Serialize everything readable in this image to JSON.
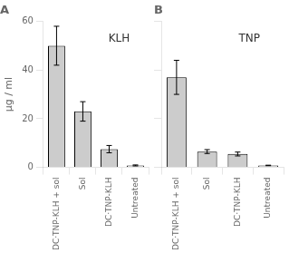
{
  "chart_data": [
    {
      "type": "bar",
      "title": "KLH",
      "annotations": [
        "A"
      ],
      "categories": [
        "DC·TNP-KLH + sol",
        "Sol",
        "DC·TNP-KLH",
        "Untreated"
      ],
      "values": [
        50,
        23,
        7.5,
        0.8
      ],
      "errors": [
        8,
        4,
        1.5,
        0.2
      ],
      "color": "#cccccc",
      "ylabel": "μg / ml",
      "ylim": [
        0,
        60
      ],
      "yticks": [
        0,
        20,
        40,
        60
      ],
      "grid": false
    },
    {
      "type": "bar",
      "title": "TNP",
      "annotations": [
        "B"
      ],
      "categories": [
        "DC·TNP-KLH + sol",
        "Sol",
        "DC·TNP-KLH",
        "Untreated"
      ],
      "values": [
        37,
        6.5,
        5.5,
        0.8
      ],
      "errors": [
        7,
        0.8,
        0.8,
        0.1
      ],
      "color": "#cccccc",
      "ylim": [
        0,
        60
      ],
      "yticks": [
        0,
        20,
        40,
        60
      ],
      "grid": false,
      "tick_labels": "x"
    }
  ]
}
